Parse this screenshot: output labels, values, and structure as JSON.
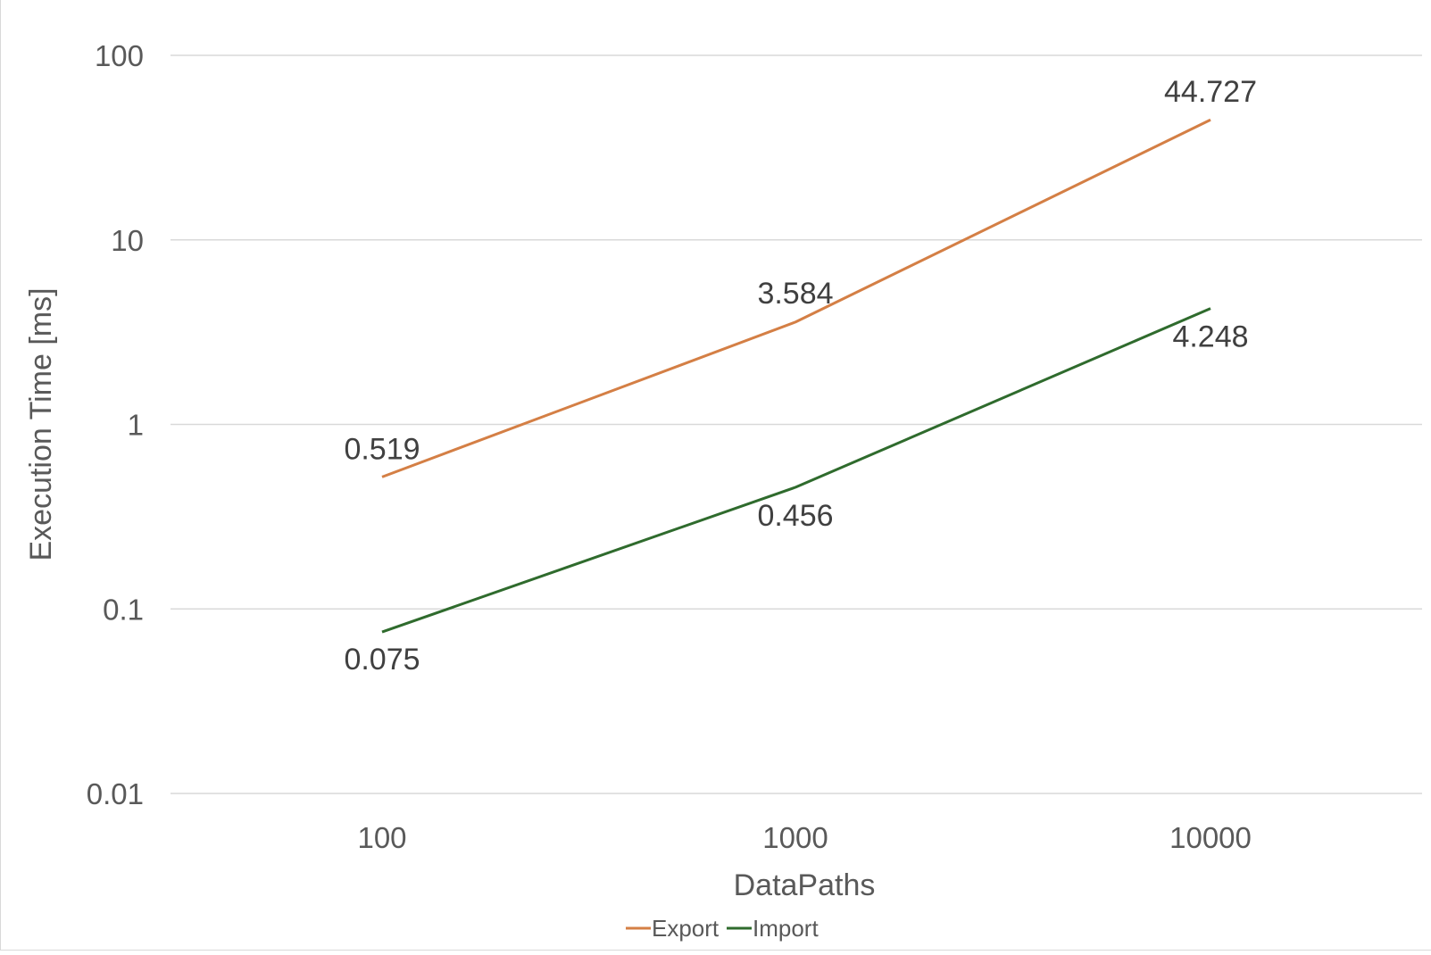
{
  "chart_data": {
    "type": "line",
    "title": "",
    "xlabel": "DataPaths",
    "ylabel": "Execution Time [ms]",
    "x_scale": "log",
    "y_scale": "log",
    "x": [
      100,
      1000,
      10000
    ],
    "x_tick_labels": [
      "100",
      "1000",
      "10000"
    ],
    "ylim": [
      0.01,
      100
    ],
    "y_ticks": [
      0.01,
      0.1,
      1,
      10,
      100
    ],
    "y_tick_labels": [
      "0.01",
      "0.1",
      "1",
      "10",
      "100"
    ],
    "grid": "horizontal",
    "legend_position": "bottom",
    "series": [
      {
        "name": "Export",
        "color": "#d47f45",
        "values": [
          0.519,
          3.584,
          44.727
        ],
        "data_labels": [
          "0.519",
          "3.584",
          "44.727"
        ]
      },
      {
        "name": "Import",
        "color": "#2f6b2d",
        "values": [
          0.075,
          0.456,
          4.248
        ],
        "data_labels": [
          "0.075",
          "0.456",
          "4.248"
        ]
      }
    ]
  }
}
